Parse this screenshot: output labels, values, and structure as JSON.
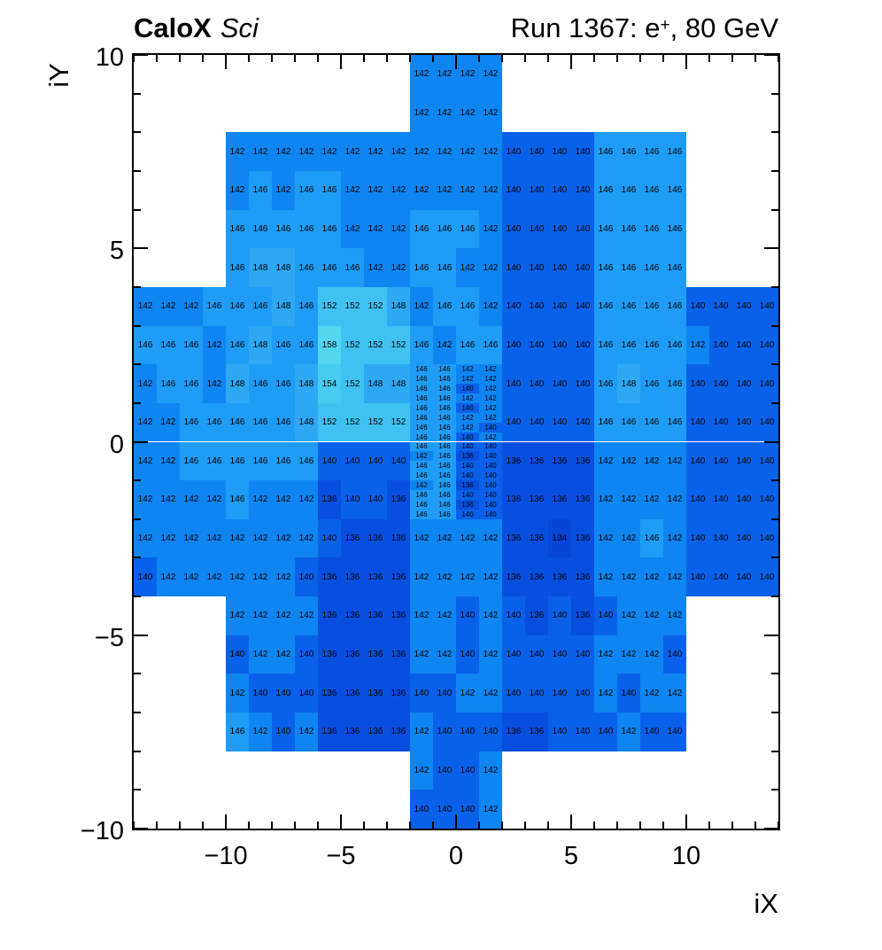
{
  "header": {
    "left_bold": "CaloX",
    "left_italic": "Sci",
    "right_pre": "Run 1367: e",
    "right_sup": "+",
    "right_post": ", 80 GeV"
  },
  "axes": {
    "x": {
      "title": "iX",
      "range": [
        -14,
        14
      ],
      "minor_step": 1,
      "major": [
        {
          "v": -10,
          "label": "−10"
        },
        {
          "v": -5,
          "label": "−5"
        },
        {
          "v": 0,
          "label": "0"
        },
        {
          "v": 5,
          "label": "5"
        },
        {
          "v": 10,
          "label": "10"
        }
      ]
    },
    "y": {
      "title": "iY",
      "range": [
        -10,
        10
      ],
      "minor_step": 1,
      "major": [
        {
          "v": 10,
          "label": "10"
        },
        {
          "v": 5,
          "label": "5"
        },
        {
          "v": 0,
          "label": "0"
        },
        {
          "v": -5,
          "label": "−5"
        },
        {
          "v": -10,
          "label": "−10"
        }
      ]
    }
  },
  "chart_data": {
    "type": "heatmap",
    "title": "CaloX Sci — Run 1367: e+, 80 GeV",
    "xlabel": "iX",
    "ylabel": "iY",
    "x_range": [
      -14,
      14
    ],
    "y_range": [
      -10,
      10
    ],
    "grid": false,
    "text_labels": true,
    "value_colors": {
      "134": "#0645d5",
      "136": "#084fdf",
      "140": "#0a61e9",
      "142": "#0e85f1",
      "146": "#1f9cf6",
      "148": "#2ea8f3",
      "152": "#3fc2f1",
      "154": "#48cbf0",
      "158": "#53d6ee"
    },
    "coarse_rows": [
      {
        "iy_top": 10,
        "segments": [
          {
            "ix_start": -2,
            "values": [
              142,
              142,
              142,
              142
            ]
          }
        ]
      },
      {
        "iy_top": 9,
        "segments": [
          {
            "ix_start": -2,
            "values": [
              142,
              142,
              142,
              142
            ]
          }
        ]
      },
      {
        "iy_top": 8,
        "segments": [
          {
            "ix_start": -10,
            "values": [
              142,
              142,
              142,
              142,
              142,
              142,
              142,
              142,
              142,
              142,
              142,
              142,
              140,
              140,
              140,
              140,
              146,
              146,
              146,
              146
            ]
          }
        ]
      },
      {
        "iy_top": 7,
        "segments": [
          {
            "ix_start": -10,
            "values": [
              142,
              146,
              142,
              146,
              146,
              142,
              142,
              142,
              142,
              142,
              142,
              142,
              140,
              140,
              140,
              140,
              146,
              146,
              146,
              146
            ]
          }
        ]
      },
      {
        "iy_top": 6,
        "segments": [
          {
            "ix_start": -10,
            "values": [
              146,
              146,
              146,
              146,
              146,
              142,
              142,
              142,
              146,
              146,
              146,
              142,
              140,
              140,
              140,
              140,
              146,
              146,
              146,
              146
            ]
          }
        ]
      },
      {
        "iy_top": 5,
        "segments": [
          {
            "ix_start": -10,
            "values": [
              146,
              148,
              148,
              146,
              146,
              146,
              142,
              142,
              146,
              146,
              142,
              142,
              140,
              140,
              140,
              140,
              146,
              146,
              146,
              146
            ]
          }
        ]
      },
      {
        "iy_top": 4,
        "segments": [
          {
            "ix_start": -14,
            "values": [
              142,
              142,
              142,
              146,
              146,
              146,
              148,
              146,
              152,
              152,
              152,
              148,
              142,
              146,
              146,
              142,
              140,
              140,
              140,
              140,
              146,
              146,
              146,
              146,
              140,
              140,
              140,
              140
            ]
          }
        ]
      },
      {
        "iy_top": 3,
        "segments": [
          {
            "ix_start": -14,
            "values": [
              146,
              146,
              146,
              142,
              146,
              148,
              146,
              146,
              158,
              152,
              152,
              152,
              146,
              142,
              146,
              146,
              140,
              140,
              140,
              140,
              146,
              146,
              146,
              146,
              142,
              140,
              140,
              140
            ]
          }
        ]
      },
      {
        "iy_top": 2,
        "segments": [
          {
            "ix_start": -14,
            "values": [
              142,
              146,
              146,
              142,
              148,
              146,
              146,
              148,
              154,
              152,
              148,
              148
            ]
          },
          {
            "ix_start": 2,
            "values": [
              140,
              140,
              140,
              140,
              146,
              148,
              146,
              146,
              140,
              140,
              140,
              140
            ]
          }
        ]
      },
      {
        "iy_top": 1,
        "segments": [
          {
            "ix_start": -14,
            "values": [
              142,
              142,
              146,
              146,
              146,
              146,
              146,
              148,
              152,
              152,
              152,
              152
            ]
          },
          {
            "ix_start": 2,
            "values": [
              140,
              140,
              140,
              140,
              146,
              146,
              146,
              146,
              140,
              140,
              140,
              140
            ]
          }
        ]
      },
      {
        "iy_top": 0,
        "segments": [
          {
            "ix_start": -14,
            "values": [
              142,
              142,
              146,
              146,
              146,
              146,
              146,
              146,
              140,
              140,
              140,
              140
            ]
          },
          {
            "ix_start": 2,
            "values": [
              136,
              136,
              136,
              136,
              142,
              142,
              142,
              142,
              140,
              140,
              140,
              140
            ]
          }
        ]
      },
      {
        "iy_top": -1,
        "segments": [
          {
            "ix_start": -14,
            "values": [
              142,
              142,
              142,
              142,
              146,
              142,
              142,
              142,
              136,
              140,
              140,
              136
            ]
          },
          {
            "ix_start": 2,
            "values": [
              136,
              136,
              136,
              136,
              142,
              142,
              142,
              142,
              140,
              140,
              140,
              140
            ]
          }
        ]
      },
      {
        "iy_top": -2,
        "segments": [
          {
            "ix_start": -14,
            "values": [
              142,
              142,
              142,
              142,
              142,
              142,
              142,
              142,
              140,
              136,
              136,
              136,
              142,
              142,
              142,
              142,
              136,
              136,
              134,
              136,
              142,
              142,
              146,
              142,
              140,
              140,
              140,
              140
            ]
          }
        ]
      },
      {
        "iy_top": -3,
        "segments": [
          {
            "ix_start": -14,
            "values": [
              140,
              142,
              142,
              142,
              142,
              142,
              142,
              140,
              136,
              136,
              136,
              136,
              142,
              142,
              142,
              142,
              136,
              136,
              136,
              136,
              142,
              142,
              142,
              142,
              140,
              140,
              140,
              140
            ]
          }
        ]
      },
      {
        "iy_top": -4,
        "segments": [
          {
            "ix_start": -10,
            "values": [
              142,
              142,
              142,
              142,
              136,
              136,
              136,
              136,
              142,
              142,
              140,
              142,
              140,
              136,
              140,
              136,
              140,
              142,
              142,
              142
            ]
          }
        ]
      },
      {
        "iy_top": -5,
        "segments": [
          {
            "ix_start": -10,
            "values": [
              140,
              142,
              142,
              140,
              136,
              136,
              136,
              136,
              142,
              142,
              140,
              142,
              140,
              140,
              140,
              140,
              142,
              142,
              142,
              140
            ]
          }
        ]
      },
      {
        "iy_top": -6,
        "segments": [
          {
            "ix_start": -10,
            "values": [
              142,
              140,
              140,
              140,
              136,
              136,
              136,
              136,
              140,
              140,
              142,
              142,
              140,
              140,
              140,
              140,
              142,
              140,
              142,
              142
            ]
          }
        ]
      },
      {
        "iy_top": -7,
        "segments": [
          {
            "ix_start": -10,
            "values": [
              146,
              142,
              140,
              142,
              136,
              136,
              136,
              136,
              142,
              140,
              140,
              140,
              136,
              136,
              140,
              140,
              140,
              142,
              140,
              140
            ]
          }
        ]
      },
      {
        "iy_top": -8,
        "segments": [
          {
            "ix_start": -2,
            "values": [
              142,
              140,
              140,
              142
            ]
          }
        ]
      },
      {
        "iy_top": -9,
        "segments": [
          {
            "ix_start": -2,
            "values": [
              140,
              140,
              140,
              142
            ]
          }
        ]
      }
    ],
    "fine_region": {
      "ix_start": -2,
      "columns": 4,
      "iy_top": 2.0,
      "row_height": 0.25,
      "rows": [
        [
          146,
          146,
          142,
          142
        ],
        [
          146,
          146,
          142,
          142
        ],
        [
          146,
          146,
          140,
          142
        ],
        [
          146,
          146,
          142,
          142
        ],
        [
          146,
          146,
          140,
          142
        ],
        [
          146,
          146,
          142,
          142
        ],
        [
          146,
          146,
          142,
          140
        ],
        [
          146,
          146,
          140,
          142
        ],
        [
          146,
          146,
          140,
          140
        ],
        [
          142,
          146,
          136,
          140
        ],
        [
          146,
          146,
          140,
          140
        ],
        [
          146,
          146,
          140,
          140
        ],
        [
          142,
          146,
          136,
          140
        ],
        [
          146,
          146,
          140,
          140
        ],
        [
          146,
          146,
          136,
          140
        ],
        [
          146,
          146,
          140,
          140
        ]
      ]
    }
  }
}
